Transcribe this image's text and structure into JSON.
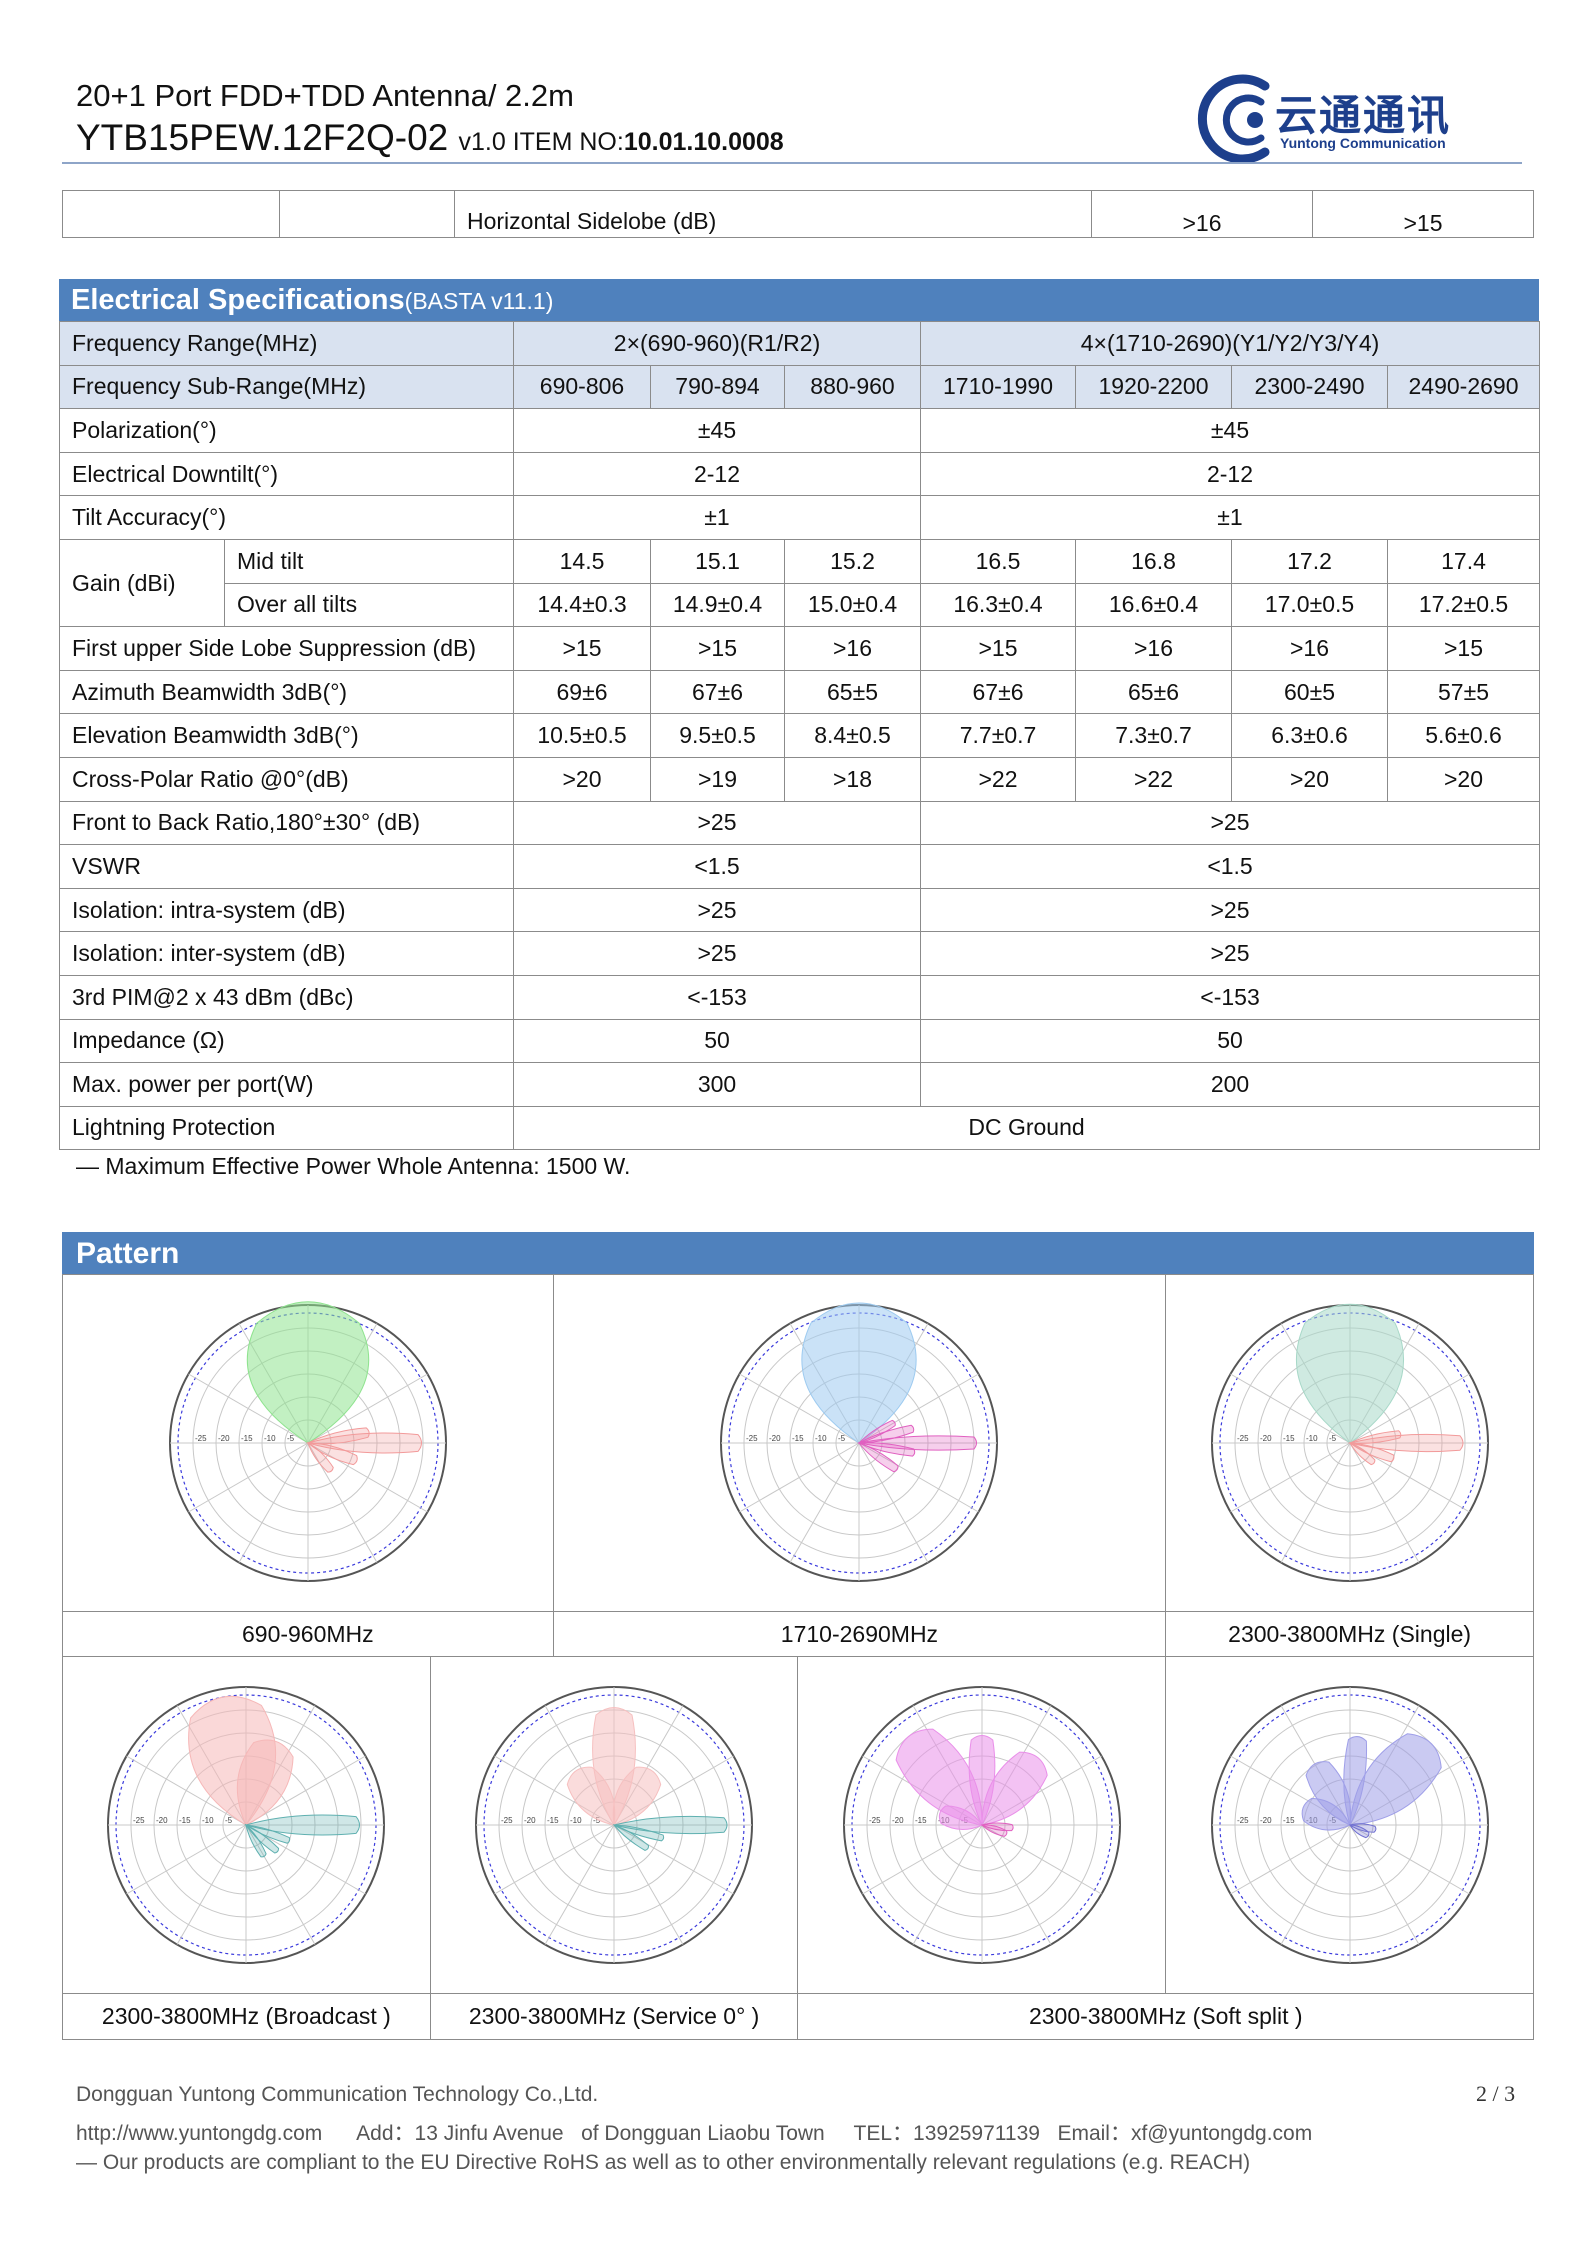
{
  "header": {
    "line1": "20+1 Port FDD+TDD Antenna/ 2.2m",
    "model": "YTB15PEW.12F2Q-02",
    "version": "v1.0 ITEM NO:",
    "item_no": "10.01.10.0008"
  },
  "logo": {
    "cn": "云通通讯",
    "en": "Yuntong Communication",
    "color": "#1d3f8c"
  },
  "top_fragment": {
    "label": "Horizontal Sidelobe (dB)",
    "v1": ">16",
    "v2": ">15"
  },
  "specs": {
    "title": "Electrical Specifications",
    "subtitle": "(BASTA v11.1)",
    "freq_range_label": "Frequency Range(MHz)",
    "freq_range_low": "2×(690-960)(R1/R2)",
    "freq_range_high": "4×(1710-2690)(Y1/Y2/Y3/Y4)",
    "subrange_label": "Frequency Sub-Range(MHz)",
    "subranges": [
      "690-806",
      "790-894",
      "880-960",
      "1710-1990",
      "1920-2200",
      "2300-2490",
      "2490-2690"
    ],
    "polarization": {
      "label": "Polarization(°)",
      "low": "±45",
      "high": "±45"
    },
    "downtilt": {
      "label": "Electrical Downtilt(°)",
      "low": "2-12",
      "high": "2-12"
    },
    "tilt_accuracy": {
      "label": "Tilt Accuracy(°)",
      "low": "±1",
      "high": "±1"
    },
    "gain": {
      "label": "Gain (dBi)",
      "mid_label": "Mid tilt",
      "mid": [
        "14.5",
        "15.1",
        "15.2",
        "16.5",
        "16.8",
        "17.2",
        "17.4"
      ],
      "all_label": "Over all tilts",
      "all": [
        "14.4±0.3",
        "14.9±0.4",
        "15.0±0.4",
        "16.3±0.4",
        "16.6±0.4",
        "17.0±0.5",
        "17.2±0.5"
      ]
    },
    "sidelobe": {
      "label": "First upper Side Lobe Suppression (dB)",
      "values": [
        ">15",
        ">15",
        ">16",
        ">15",
        ">16",
        ">16",
        ">15"
      ]
    },
    "azimuth": {
      "label": "Azimuth Beamwidth 3dB(°)",
      "values": [
        "69±6",
        "67±6",
        "65±5",
        "67±6",
        "65±6",
        "60±5",
        "57±5"
      ]
    },
    "elevation": {
      "label": "Elevation Beamwidth 3dB(°)",
      "values": [
        "10.5±0.5",
        "9.5±0.5",
        "8.4±0.5",
        "7.7±0.7",
        "7.3±0.7",
        "6.3±0.6",
        "5.6±0.6"
      ]
    },
    "crosspolar": {
      "label": "Cross-Polar Ratio @0°(dB)",
      "values": [
        ">20",
        ">19",
        ">18",
        ">22",
        ">22",
        ">20",
        ">20"
      ]
    },
    "front_back": {
      "label": "Front to Back Ratio,180°±30° (dB)",
      "low": ">25",
      "high": ">25"
    },
    "vswr": {
      "label": "VSWR",
      "low": "<1.5",
      "high": "<1.5"
    },
    "iso_intra": {
      "label": "Isolation: intra-system (dB)",
      "low": ">25",
      "high": ">25"
    },
    "iso_inter": {
      "label": "Isolation: inter-system (dB)",
      "low": ">25",
      "high": ">25"
    },
    "pim": {
      "label": "3rd PIM@2 x 43 dBm (dBc)",
      "low": "<-153",
      "high": "<-153"
    },
    "impedance": {
      "label": "Impedance (Ω)",
      "low": "50",
      "high": "50"
    },
    "max_power": {
      "label": "Max. power per port(W)",
      "low": "300",
      "high": "200"
    },
    "lightning": {
      "label": "Lightning Protection",
      "value": "DC Ground"
    },
    "note": "— Maximum Effective Power Whole Antenna: 1500 W."
  },
  "pattern": {
    "title": "Pattern",
    "captions_row1": [
      "690-960MHz",
      "1710-2690MHz",
      "2300-3800MHz (Single)"
    ],
    "captions_row2": [
      "2300-3800MHz (Broadcast )",
      "2300-3800MHz (Service 0° )",
      "2300-3800MHz (Soft split )"
    ],
    "ring_labels": [
      "-5",
      "-10",
      "-15",
      "-20",
      "-25"
    ],
    "colors": [
      "#8fe38f",
      "#9ecbf0",
      "#a8d8c8",
      "#f6b8b8",
      "#f6c0c0",
      "#e98fe9",
      "#9f9fe8"
    ],
    "accents": [
      "#f29a9a",
      "#e060c0",
      "#f29a9a",
      "#5fb0b0",
      "#5fb0b0",
      "#e060c0",
      "#7070d0"
    ]
  },
  "footer": {
    "company": "Dongguan Yuntong Communication Technology Co.,Ltd.",
    "contact": "http://www.yuntongdg.com      Add：13 Jinfu Avenue   of Dongguan Liaobu Town     TEL：13925971139   Email：xf@yuntongdg.com",
    "compliance": "— Our products are compliant to the EU Directive RoHS as well as to other environmentally relevant regulations (e.g. REACH)",
    "page": "2 / 3"
  }
}
